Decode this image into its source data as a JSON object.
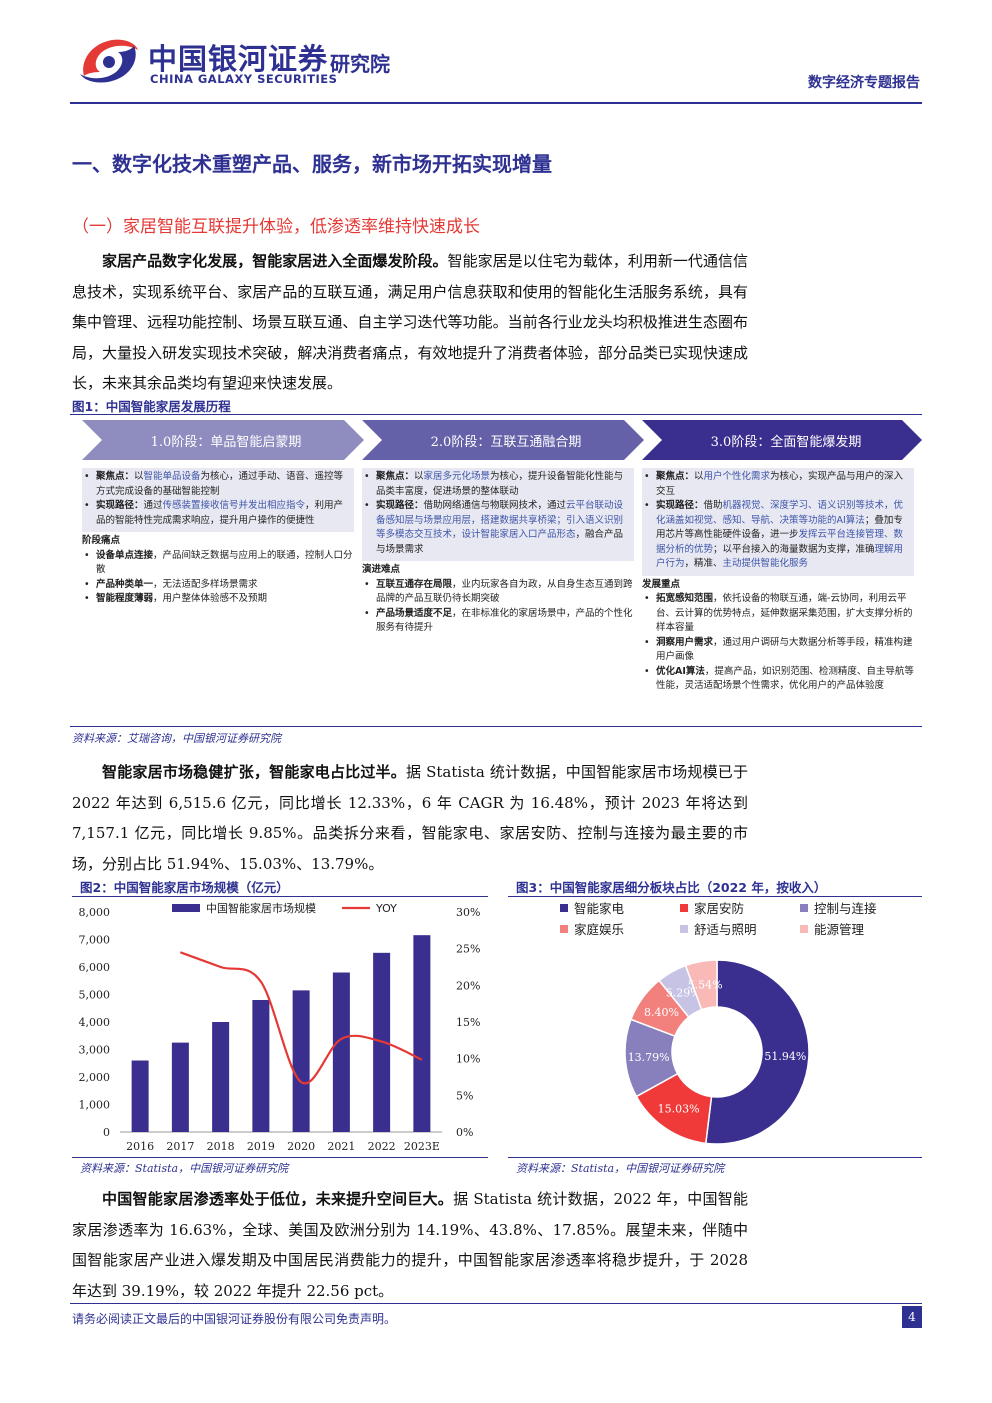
{
  "header": {
    "logo_cn": "中国银河证券",
    "logo_en": "CHINA GALAXY SECURITIES",
    "institute": "研究院",
    "report_type": "数字经济专题报告"
  },
  "section": {
    "h1": "一、数字化技术重塑产品、服务，新市场开拓实现增量",
    "h2": "（一）家居智能互联提升体验，低渗透率维持快速成长"
  },
  "para1": {
    "bold": "家居产品数字化发展，智能家居进入全面爆发阶段。",
    "text": "智能家居是以住宅为载体，利用新一代通信信息技术，实现系统平台、家居产品的互联互通，满足用户信息获取和使用的智能化生活服务系统，具有集中管理、远程功能控制、场景互联互通、自主学习迭代等功能。当前各行业龙头均积极推进生态圈布局，大量投入研发实现技术突破，解决消费者痛点，有效地提升了消费者体验，部分品类已实现快速成长，未来其余品类均有望迎来快速发展。"
  },
  "fig1": {
    "title": "图1：中国智能家居发展历程",
    "source": "资料来源：艾瑞咨询，中国银河证券研究院",
    "stages": [
      "1.0阶段：单品智能启蒙期",
      "2.0阶段：互联互通融合期",
      "3.0阶段：全面智能爆发期"
    ],
    "s1": {
      "focus_k": "聚焦点：",
      "focus_a": "以",
      "focus_b": "智能单品设备",
      "focus_c": "为核心，通过手动、语音、遥控等方式完成设备的基础智能控制",
      "path_k": "实现路径：",
      "path_a": "通过",
      "path_b": "传感装置接收信号并发出相应指令",
      "path_c": "，利用产品的智能特性完成需求响应，提升用户操作的便捷性",
      "pain_title": "阶段痛点",
      "p1_k": "设备单点连接",
      "p1_t": "，产品间缺乏数据与应用上的联通，控制人口分散",
      "p2_k": "产品种类单一",
      "p2_t": "，无法适配多样场景需求",
      "p3_k": "智能程度薄弱",
      "p3_t": "，用户整体体验感不及预期"
    },
    "s2": {
      "focus_k": "聚焦点：",
      "focus_a": "以",
      "focus_b": "家居多元化场景",
      "focus_c": "为核心，提升设备智能化性能与品类丰富度，促进场景的整体联动",
      "path_k": "实现路径：",
      "path_a": "借助网络通信与物联网技术，通过",
      "path_b": "云平台联动设备感知层与场景应用层，搭建数据共享桥梁；引入语义识别等多模态交互技术，设计智能家居入口产品形态",
      "path_c": "，融合产品与场景需求",
      "pain_title": "演进难点",
      "p1_k": "互联互通存在局限",
      "p1_t": "，业内玩家各自为政，从自身生态互通到跨品牌的产品互联仍待长期突破",
      "p2_k": "产品场景适度不足",
      "p2_t": "，在非标准化的家居场景中，产品的个性化服务有待提升"
    },
    "s3": {
      "focus_k": "聚焦点：",
      "focus_a": "以",
      "focus_b": "用户个性化需求",
      "focus_c": "为核心，实现产品与用户的深入交互",
      "path_k": "实现路径：",
      "path_a": "借助",
      "path_b": "机器视觉、深度学习、语义识别等技术，优化涵盖如视觉、感知、导航、决策等功能的AI算法",
      "path_c": "；叠加专用芯片等高性能硬件设备，进一步",
      "path_d": "发挥云平台连接管理、数据分析的优势",
      "path_e": "；以平台接入的海量数据为支撑，准确",
      "path_f": "理解用户行为",
      "path_g": "，精准、",
      "path_h": "主动提供智能化服务",
      "pain_title": "发展重点",
      "p1_k": "拓宽感知范围",
      "p1_t": "，依托设备的物联互通，端-云协同，利用云平台、云计算的优势特点，延伸数据采集范围，扩大支撑分析的样本容量",
      "p2_k": "洞察用户需求",
      "p2_t": "，通过用户调研与大数据分析等手段，精准构建用户画像",
      "p3_k": "优化AI算法",
      "p3_t": "，提高产品，如识别范围、检测精度、自主导航等性能，灵活适配场景个性需求，优化用户的产品体验度"
    }
  },
  "para2": {
    "bold": "智能家居市场稳健扩张，智能家电占比过半。",
    "text": "据 Statista 统计数据，中国智能家居市场规模已于 2022 年达到 6,515.6 亿元，同比增长 12.33%，6 年 CAGR 为 16.48%，预计 2023 年将达到 7,157.1 亿元，同比增长 9.85%。品类拆分来看，智能家电、家居安防、控制与连接为最主要的市场，分别占比 51.94%、15.03%、13.79%。"
  },
  "fig2": {
    "title": "图2：中国智能家居市场规模（亿元）",
    "source": "资料来源：Statista，中国银河证券研究院"
  },
  "fig3": {
    "title": "图3：中国智能家居细分板块占比（2022 年，按收入）",
    "source": "资料来源：Statista，中国银河证券研究院"
  },
  "chart_data": [
    {
      "type": "bar",
      "categories": [
        "2016",
        "2017",
        "2018",
        "2019",
        "2020",
        "2021",
        "2022",
        "2023E"
      ],
      "series": [
        {
          "name": "中国智能家居市场规模",
          "values": [
            2600,
            3250,
            4000,
            4800,
            5150,
            5800,
            6515.6,
            7157.1
          ],
          "color": "#3a2f8f",
          "axis": "left"
        },
        {
          "name": "YOY",
          "values": [
            null,
            24.5,
            22.5,
            20.5,
            6.8,
            12.7,
            12.33,
            9.85
          ],
          "color": "#e53935",
          "axis": "right",
          "kind": "line"
        }
      ],
      "yticks_left": [
        "0",
        "1,000",
        "2,000",
        "3,000",
        "4,000",
        "5,000",
        "6,000",
        "7,000",
        "8,000"
      ],
      "yticks_right": [
        "0%",
        "5%",
        "10%",
        "15%",
        "20%",
        "25%",
        "30%"
      ],
      "ylim_left": [
        0,
        8000
      ],
      "ylim_right": [
        0,
        30
      ],
      "legend": "top"
    },
    {
      "type": "pie",
      "donut": true,
      "labels": [
        "智能家电",
        "家居安防",
        "控制与连接",
        "家庭娱乐",
        "舒适与照明",
        "能源管理"
      ],
      "values": [
        51.94,
        15.03,
        13.79,
        8.4,
        5.29,
        5.54
      ],
      "value_labels": [
        "51.94%",
        "15.03%",
        "13.79%",
        "8.40%",
        "5.29%",
        "5.54%"
      ],
      "colors": [
        "#3a2f8f",
        "#f03a3a",
        "#8880bd",
        "#f2807d",
        "#c7c3e4",
        "#f8b9b7"
      ],
      "legend": "top"
    }
  ],
  "para3": {
    "bold": "中国智能家居渗透率处于低位，未来提升空间巨大。",
    "text": "据 Statista 统计数据，2022 年，中国智能家居渗透率为 16.63%，全球、美国及欧洲分别为 14.19%、43.8%、17.85%。展望未来，伴随中国智能家居产业进入爆发期及中国居民消费能力的提升，中国智能家居渗透率将稳步提升，于 2028 年达到 39.19%，较 2022 年提升 22.56 pct。"
  },
  "footer": {
    "disclaimer": "请务必阅读正文最后的中国银河证券股份有限公司免责声明。",
    "page": "4"
  }
}
